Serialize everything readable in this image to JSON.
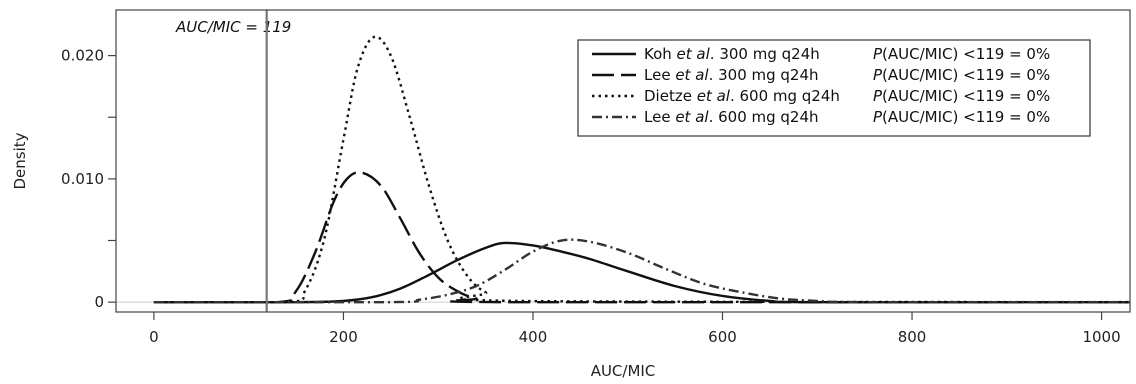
{
  "chart_data": {
    "type": "line",
    "xlabel": "AUC/MIC",
    "ylabel": "Density",
    "xlim": [
      -40,
      1030
    ],
    "ylim": [
      -0.0008,
      0.0237
    ],
    "xticks": [
      0,
      200,
      400,
      600,
      800,
      1000
    ],
    "xtick_labels": [
      "0",
      "200",
      "400",
      "600",
      "800",
      "1000"
    ],
    "yticks": [
      0,
      0.005,
      0.01,
      0.015,
      0.02
    ],
    "ytick_labels": [
      "0",
      "",
      "0.010",
      "",
      "0.020"
    ],
    "grid": false,
    "legend_position": "top-right",
    "reference_line": {
      "x": 119,
      "label": "AUC/MIC = 119",
      "color": "#777777"
    },
    "baseline_color": "#cccccc",
    "series": [
      {
        "name": "Koh et al. 300 mg q24h",
        "legend": {
          "pre": "Koh ",
          "em": "et al",
          "post": ". 300 mg q24h",
          "stat_p": "P",
          "stat_rest": "(AUC/MIC) <119 = 0%"
        },
        "dash": "solid",
        "color": "#111111",
        "x": [
          0,
          150,
          200,
          230,
          260,
          290,
          320,
          350,
          370,
          400,
          430,
          460,
          500,
          550,
          600,
          650,
          700,
          1030
        ],
        "y": [
          0,
          0,
          0.0001,
          0.0004,
          0.0011,
          0.0022,
          0.0034,
          0.0044,
          0.0048,
          0.0046,
          0.0041,
          0.0035,
          0.0025,
          0.0013,
          0.0005,
          0.0001,
          0,
          0
        ]
      },
      {
        "name": "Lee et al. 300 mg q24h",
        "legend": {
          "pre": "Lee ",
          "em": "et al",
          "post": ". 300 mg q24h",
          "stat_p": "P",
          "stat_rest": "(AUC/MIC) <119 = 0%"
        },
        "dash": "long",
        "color": "#111111",
        "x": [
          0,
          130,
          150,
          170,
          190,
          205,
          220,
          240,
          260,
          280,
          300,
          320,
          340,
          370,
          1030
        ],
        "y": [
          0,
          0,
          0.0009,
          0.004,
          0.0082,
          0.0101,
          0.0105,
          0.0094,
          0.0068,
          0.004,
          0.002,
          0.0009,
          0.0003,
          0,
          0
        ]
      },
      {
        "name": "Dietze et al. 600 mg q24h",
        "legend": {
          "pre": "Dietze ",
          "em": "et al",
          "post": ". 600 mg q24h",
          "stat_p": "P",
          "stat_rest": "(AUC/MIC) <119 = 0%"
        },
        "dash": "dotted",
        "color": "#111111",
        "x": [
          0,
          140,
          160,
          180,
          200,
          215,
          232,
          250,
          270,
          290,
          310,
          330,
          350,
          380,
          1030
        ],
        "y": [
          0,
          0,
          0.001,
          0.0052,
          0.0132,
          0.019,
          0.0215,
          0.02,
          0.015,
          0.0095,
          0.005,
          0.0022,
          0.0008,
          0.0001,
          0
        ]
      },
      {
        "name": "Lee et al. 600 mg q24h",
        "legend": {
          "pre": "Lee ",
          "em": "et al",
          "post": ". 600 mg q24h",
          "stat_p": "P",
          "stat_rest": "(AUC/MIC) <119 = 0%"
        },
        "dash": "dashdot",
        "color": "#333333",
        "x": [
          0,
          250,
          280,
          310,
          340,
          370,
          400,
          430,
          460,
          500,
          540,
          580,
          620,
          660,
          700,
          750,
          1030
        ],
        "y": [
          0,
          0,
          0.0002,
          0.0006,
          0.0013,
          0.0026,
          0.0041,
          0.005,
          0.0049,
          0.004,
          0.0027,
          0.0015,
          0.0008,
          0.0003,
          0.0001,
          0,
          0
        ]
      }
    ]
  }
}
